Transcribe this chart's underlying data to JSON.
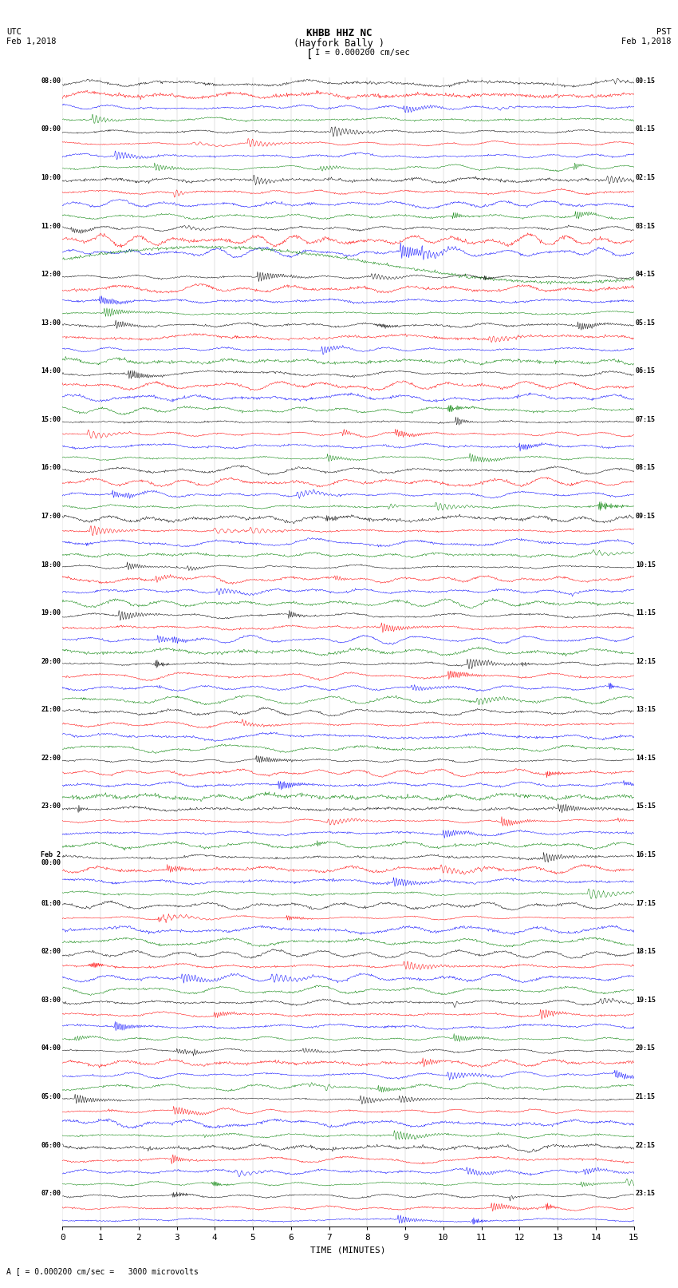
{
  "title_line1": "KHBB HHZ NC",
  "title_line2": "(Hayfork Bally )",
  "scale_label": "I = 0.000200 cm/sec",
  "bottom_label": "A [ = 0.000200 cm/sec =   3000 microvolts",
  "xlabel": "TIME (MINUTES)",
  "bg_color": "#ffffff",
  "trace_colors": [
    "#000000",
    "#ff0000",
    "#0000ff",
    "#008000"
  ],
  "left_times": [
    "08:00",
    "",
    "",
    "",
    "09:00",
    "",
    "",
    "",
    "10:00",
    "",
    "",
    "",
    "11:00",
    "",
    "",
    "",
    "12:00",
    "",
    "",
    "",
    "13:00",
    "",
    "",
    "",
    "14:00",
    "",
    "",
    "",
    "15:00",
    "",
    "",
    "",
    "16:00",
    "",
    "",
    "",
    "17:00",
    "",
    "",
    "",
    "18:00",
    "",
    "",
    "",
    "19:00",
    "",
    "",
    "",
    "20:00",
    "",
    "",
    "",
    "21:00",
    "",
    "",
    "",
    "22:00",
    "",
    "",
    "",
    "23:00",
    "",
    "",
    "",
    "Feb 2\n00:00",
    "",
    "",
    "",
    "01:00",
    "",
    "",
    "",
    "02:00",
    "",
    "",
    "",
    "03:00",
    "",
    "",
    "",
    "04:00",
    "",
    "",
    "",
    "05:00",
    "",
    "",
    "",
    "06:00",
    "",
    "",
    "",
    "07:00",
    "",
    ""
  ],
  "right_times": [
    "00:15",
    "",
    "",
    "",
    "01:15",
    "",
    "",
    "",
    "02:15",
    "",
    "",
    "",
    "03:15",
    "",
    "",
    "",
    "04:15",
    "",
    "",
    "",
    "05:15",
    "",
    "",
    "",
    "06:15",
    "",
    "",
    "",
    "07:15",
    "",
    "",
    "",
    "08:15",
    "",
    "",
    "",
    "09:15",
    "",
    "",
    "",
    "10:15",
    "",
    "",
    "",
    "11:15",
    "",
    "",
    "",
    "12:15",
    "",
    "",
    "",
    "13:15",
    "",
    "",
    "",
    "14:15",
    "",
    "",
    "",
    "15:15",
    "",
    "",
    "",
    "16:15",
    "",
    "",
    "",
    "17:15",
    "",
    "",
    "",
    "18:15",
    "",
    "",
    "",
    "19:15",
    "",
    "",
    "",
    "20:15",
    "",
    "",
    "",
    "21:15",
    "",
    "",
    "",
    "22:15",
    "",
    "",
    "",
    "23:15",
    "",
    ""
  ],
  "minutes": 15,
  "samples_per_minute": 60,
  "fig_width": 8.5,
  "fig_height": 16.13,
  "dpi": 100
}
